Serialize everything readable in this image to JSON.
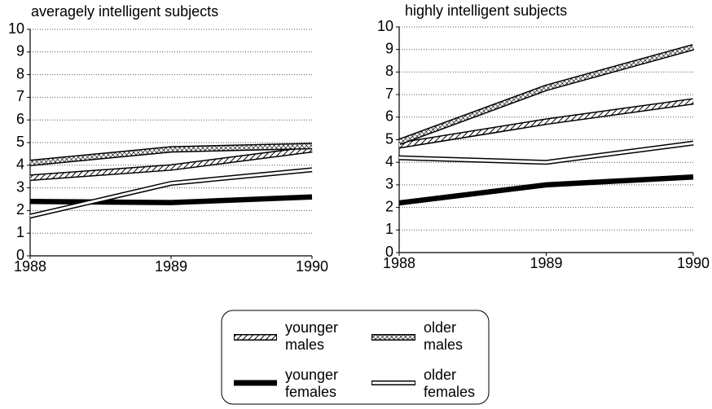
{
  "chart_data": [
    {
      "type": "line",
      "title": "averagely intelligent subjects",
      "x": [
        1988,
        1989,
        1990
      ],
      "xlim": [
        1988,
        1990
      ],
      "xticks": [
        1988,
        1989,
        1990
      ],
      "ylim": [
        0,
        10
      ],
      "yticks": [
        0,
        1,
        2,
        3,
        4,
        5,
        6,
        7,
        8,
        9,
        10
      ],
      "grid": true,
      "series": [
        {
          "name": "younger males",
          "pattern": "diagonal",
          "values": [
            3.45,
            3.9,
            4.7
          ]
        },
        {
          "name": "older males",
          "pattern": "crosshatch",
          "values": [
            4.1,
            4.7,
            4.85
          ]
        },
        {
          "name": "younger females",
          "pattern": "solid",
          "values": [
            2.4,
            2.35,
            2.6
          ]
        },
        {
          "name": "older females",
          "pattern": "hollow",
          "values": [
            1.75,
            3.2,
            3.8
          ]
        }
      ]
    },
    {
      "type": "line",
      "title": "highly intelligent subjects",
      "x": [
        1988,
        1989,
        1990
      ],
      "xlim": [
        1988,
        1990
      ],
      "xticks": [
        1988,
        1989,
        1990
      ],
      "ylim": [
        0,
        10
      ],
      "yticks": [
        0,
        1,
        2,
        3,
        4,
        5,
        6,
        7,
        8,
        9,
        10
      ],
      "grid": true,
      "series": [
        {
          "pattern": "diagonal",
          "values": [
            4.75,
            5.8,
            6.7
          ]
        },
        {
          "pattern": "crosshatch",
          "values": [
            4.9,
            7.3,
            9.1
          ]
        },
        {
          "pattern": "solid",
          "values": [
            2.2,
            3.0,
            3.35
          ]
        },
        {
          "pattern": "hollow",
          "values": [
            4.2,
            4.0,
            4.85
          ]
        }
      ]
    }
  ]
}
